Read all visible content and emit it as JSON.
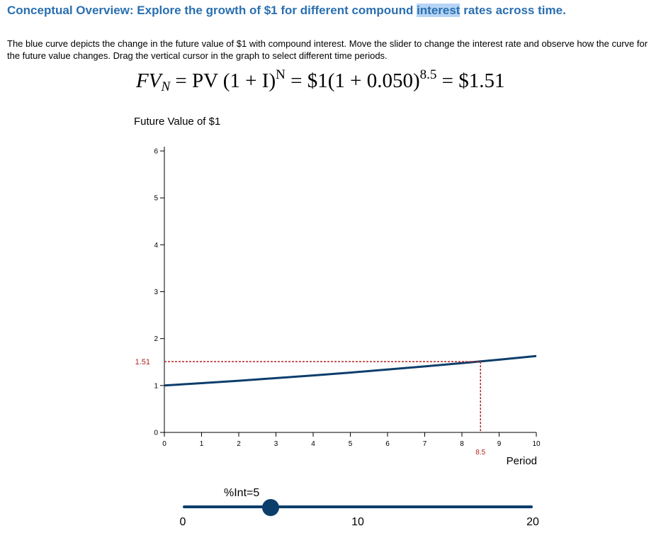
{
  "header": {
    "title_before": "Conceptual Overview: Explore the growth of $1 for different compound ",
    "title_highlight": "interest",
    "title_after": " rates across time."
  },
  "description": "The blue curve depicts the change in the future value of $1 with compound interest. Move the slider to change the interest rate and observe how the curve for the future value changes. Drag the vertical cursor in the graph to select different time periods.",
  "formula": {
    "lhs_var": "FV",
    "lhs_sub": "N",
    "pv_part": "= PV (1 + I)",
    "pv_exp": "N",
    "dollar_part": "= $1(1 + 0.050)",
    "dollar_exp": "8.5",
    "result": "= $1.51"
  },
  "chart_data": {
    "type": "line",
    "title": "",
    "ylabel": "Future Value of $1",
    "xlabel": "Period",
    "xlim": [
      0,
      10
    ],
    "ylim": [
      0,
      6
    ],
    "x_ticks": [
      0,
      1,
      2,
      3,
      4,
      5,
      6,
      7,
      8,
      9,
      10
    ],
    "y_ticks": [
      0,
      1,
      2,
      3,
      4,
      5,
      6
    ],
    "rate": 0.05,
    "series": [
      {
        "x": [
          0,
          1,
          2,
          3,
          4,
          5,
          6,
          7,
          8,
          9,
          10
        ],
        "y": [
          1.0,
          1.05,
          1.1025,
          1.1576,
          1.2155,
          1.2763,
          1.3401,
          1.4071,
          1.4775,
          1.5513,
          1.6289
        ]
      }
    ],
    "cursor": {
      "x": 8.5,
      "y": 1.51,
      "x_label": "8.5",
      "y_label": "1.51"
    },
    "colors": {
      "curve": "#0c3e6b",
      "cursor": "#b22222",
      "axis": "#000000"
    }
  },
  "slider": {
    "label": "%Int=5",
    "min": 0,
    "max": 20,
    "value": 5,
    "tick_labels": [
      {
        "value": 0,
        "label": "0"
      },
      {
        "value": 10,
        "label": "10"
      },
      {
        "value": 20,
        "label": "20"
      }
    ]
  }
}
